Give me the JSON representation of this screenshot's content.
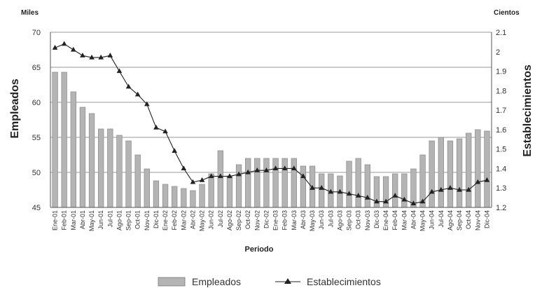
{
  "chart_data": {
    "type": "bar",
    "left_unit": "Miles",
    "right_unit": "Cientos",
    "ylabel": "Empleados",
    "y2label": "Establecimientos",
    "xlabel": "Periodo",
    "ylim": [
      45,
      70
    ],
    "yticks": [
      45,
      50,
      55,
      60,
      65,
      70
    ],
    "y2lim": [
      1.2,
      2.1
    ],
    "y2ticks": [
      "1.2",
      "1.3",
      "1.4",
      "1.5",
      "1.6",
      "1.7",
      "1.8",
      "1.9",
      "2",
      "2.1"
    ],
    "grid": true,
    "legend_position": "bottom",
    "categories": [
      "Ene-01",
      "Feb-01",
      "Mar-01",
      "Abr-01",
      "May-01",
      "Jun-01",
      "Jul-01",
      "Ago-01",
      "Sep-01",
      "Oct-01",
      "Nov-01",
      "Dic-01",
      "Ene-02",
      "Feb-02",
      "Mar-02",
      "Abr-02",
      "May-02",
      "Jun-02",
      "Jul-02",
      "Ago-02",
      "Sep-02",
      "Oct-02",
      "Nov-02",
      "Dic-02",
      "Ene-03",
      "Feb-03",
      "Mar-03",
      "Abr-03",
      "May-03",
      "Jun-03",
      "Jul-03",
      "Ago-03",
      "Sep-03",
      "Oct-03",
      "Nov-03",
      "Dic-03",
      "Ene-04",
      "Feb-04",
      "Mar-04",
      "Abr-04",
      "May-04",
      "Jun-04",
      "Jul-04",
      "Ago-04",
      "Sep-04",
      "Oct-04",
      "Nov-04",
      "Dic-04"
    ],
    "series": [
      {
        "name": "Empleados",
        "kind": "bar",
        "axis": "left",
        "color": "#b4b4b4",
        "values": [
          64.3,
          64.3,
          61.5,
          59.3,
          58.4,
          56.2,
          56.2,
          55.3,
          54.5,
          52.5,
          50.5,
          48.8,
          48.3,
          48.0,
          47.7,
          47.4,
          48.3,
          49.8,
          53.1,
          49.5,
          51.1,
          52.0,
          52.0,
          52.0,
          52.0,
          52.0,
          52.0,
          50.9,
          50.9,
          49.8,
          49.8,
          49.5,
          51.6,
          52.0,
          51.1,
          49.4,
          49.4,
          49.8,
          49.8,
          50.5,
          52.5,
          54.5,
          55.0,
          54.5,
          54.8,
          55.6,
          56.1,
          55.9
        ]
      },
      {
        "name": "Establecimientos",
        "kind": "line",
        "axis": "right",
        "color": "#222222",
        "values": [
          2.02,
          2.04,
          2.01,
          1.98,
          1.97,
          1.97,
          1.98,
          1.9,
          1.82,
          1.78,
          1.73,
          1.61,
          1.59,
          1.49,
          1.4,
          1.33,
          1.34,
          1.36,
          1.36,
          1.36,
          1.37,
          1.38,
          1.39,
          1.39,
          1.4,
          1.4,
          1.4,
          1.36,
          1.3,
          1.3,
          1.28,
          1.28,
          1.27,
          1.26,
          1.25,
          1.23,
          1.23,
          1.26,
          1.24,
          1.22,
          1.23,
          1.28,
          1.29,
          1.3,
          1.29,
          1.29,
          1.33,
          1.34
        ]
      }
    ]
  }
}
